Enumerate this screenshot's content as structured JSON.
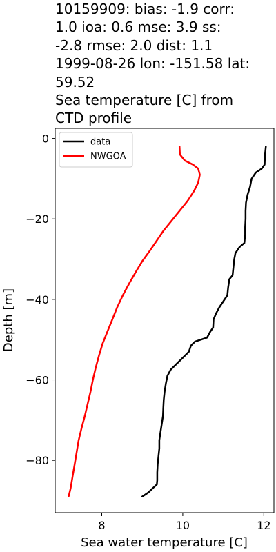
{
  "chart_data": {
    "type": "line",
    "title_lines": [
      "10159909: bias: -1.9  corr:",
      "1.0  ioa: 0.6  mse: 3.9  ss:",
      "-2.8  rmse: 2.0  dist: 1.1",
      "1999-08-26 lon: -151.58 lat:",
      "59.52",
      "Sea temperature [C] from",
      "CTD profile"
    ],
    "xlabel": "Sea water temperature [C]",
    "ylabel": "Depth [m]",
    "xlim": [
      6.85,
      12.25
    ],
    "ylim": [
      -93,
      2.5
    ],
    "xticks": [
      8,
      10,
      12
    ],
    "yticks": [
      0,
      -20,
      -40,
      -60,
      -80
    ],
    "x_tick_labels": [
      "8",
      "10",
      "12"
    ],
    "y_tick_labels": [
      "0",
      "−20",
      "−40",
      "−60",
      "−80"
    ],
    "grid": false,
    "legend_position": "top-left",
    "series": [
      {
        "name": "data",
        "color": "#000000",
        "points": [
          [
            12.05,
            -2
          ],
          [
            12.03,
            -4
          ],
          [
            12.02,
            -6.5
          ],
          [
            11.95,
            -7.5
          ],
          [
            11.8,
            -8.5
          ],
          [
            11.7,
            -10
          ],
          [
            11.66,
            -12
          ],
          [
            11.6,
            -14
          ],
          [
            11.56,
            -16
          ],
          [
            11.55,
            -18
          ],
          [
            11.55,
            -20
          ],
          [
            11.54,
            -22
          ],
          [
            11.54,
            -24
          ],
          [
            11.52,
            -26
          ],
          [
            11.4,
            -27
          ],
          [
            11.3,
            -28.5
          ],
          [
            11.27,
            -30
          ],
          [
            11.25,
            -32
          ],
          [
            11.23,
            -34
          ],
          [
            11.15,
            -35
          ],
          [
            11.12,
            -37
          ],
          [
            11.1,
            -39
          ],
          [
            11.0,
            -40.5
          ],
          [
            10.9,
            -42
          ],
          [
            10.82,
            -43.5
          ],
          [
            10.76,
            -45
          ],
          [
            10.75,
            -47
          ],
          [
            10.68,
            -48
          ],
          [
            10.6,
            -49.5
          ],
          [
            10.3,
            -50.5
          ],
          [
            10.2,
            -51.5
          ],
          [
            10.15,
            -53
          ],
          [
            10.0,
            -54.5
          ],
          [
            9.85,
            -56
          ],
          [
            9.7,
            -57.5
          ],
          [
            9.62,
            -59
          ],
          [
            9.58,
            -61
          ],
          [
            9.55,
            -63
          ],
          [
            9.53,
            -65
          ],
          [
            9.52,
            -67
          ],
          [
            9.51,
            -69
          ],
          [
            9.48,
            -71
          ],
          [
            9.45,
            -73
          ],
          [
            9.42,
            -75
          ],
          [
            9.42,
            -77
          ],
          [
            9.4,
            -79
          ],
          [
            9.38,
            -81
          ],
          [
            9.37,
            -83
          ],
          [
            9.37,
            -85
          ],
          [
            9.36,
            -86
          ],
          [
            9.25,
            -87
          ],
          [
            9.15,
            -88
          ],
          [
            9.0,
            -89
          ]
        ]
      },
      {
        "name": "NWGOA",
        "color": "#ff0000",
        "points": [
          [
            9.92,
            -2
          ],
          [
            9.93,
            -4
          ],
          [
            10.05,
            -5.5
          ],
          [
            10.25,
            -6.5
          ],
          [
            10.38,
            -7.5
          ],
          [
            10.42,
            -9
          ],
          [
            10.38,
            -11
          ],
          [
            10.28,
            -13
          ],
          [
            10.12,
            -15.5
          ],
          [
            9.92,
            -18
          ],
          [
            9.72,
            -20.5
          ],
          [
            9.52,
            -23
          ],
          [
            9.35,
            -25.5
          ],
          [
            9.18,
            -28
          ],
          [
            9.0,
            -30.5
          ],
          [
            8.85,
            -33
          ],
          [
            8.68,
            -36
          ],
          [
            8.52,
            -39
          ],
          [
            8.38,
            -42
          ],
          [
            8.26,
            -45
          ],
          [
            8.14,
            -48
          ],
          [
            8.02,
            -51
          ],
          [
            7.93,
            -54
          ],
          [
            7.85,
            -57
          ],
          [
            7.78,
            -60
          ],
          [
            7.72,
            -63
          ],
          [
            7.65,
            -66
          ],
          [
            7.58,
            -69
          ],
          [
            7.5,
            -72
          ],
          [
            7.43,
            -75
          ],
          [
            7.38,
            -78
          ],
          [
            7.33,
            -81
          ],
          [
            7.28,
            -84
          ],
          [
            7.23,
            -87
          ],
          [
            7.18,
            -89
          ]
        ]
      }
    ]
  }
}
